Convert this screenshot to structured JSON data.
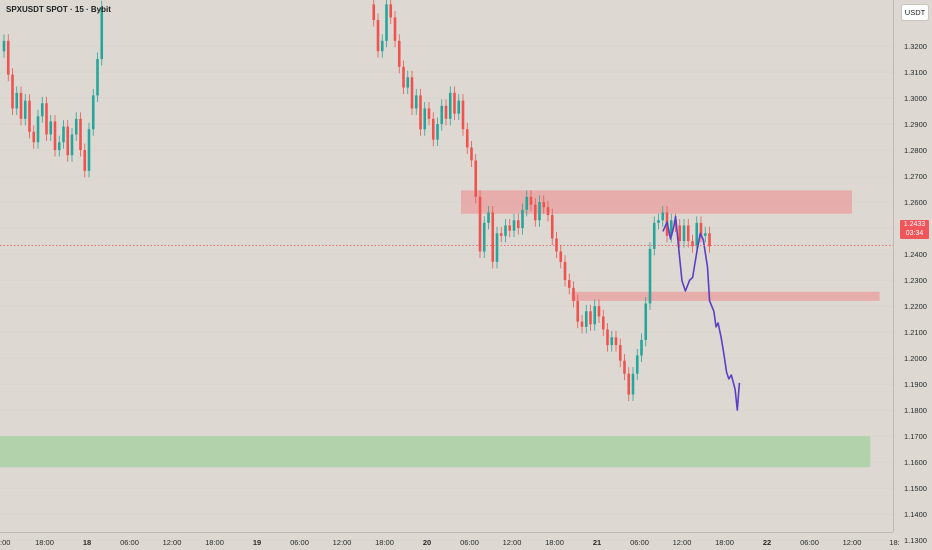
{
  "header": {
    "title": "SPXUSDT SPOT · 15 · Bybit",
    "currency_button": "USDT"
  },
  "price_tag": {
    "price": "1.2433",
    "countdown": "03:34"
  },
  "colors": {
    "background": "#ddd9d2",
    "up": "#26a69a",
    "down": "#ef5350",
    "resistance_zone": "#e8a4a4",
    "support_zone": "#a9d0a3",
    "projection": "#5b3fc6",
    "current_price_line": "#ef5350"
  },
  "chart_data": {
    "type": "candlestick",
    "ylim": [
      1.1262,
      1.3377
    ],
    "y_ticks": [
      "1.3200",
      "1.3100",
      "1.3000",
      "1.2900",
      "1.2800",
      "1.2700",
      "1.2600",
      "1.2500",
      "1.2400",
      "1.2300",
      "1.2200",
      "1.2100",
      "1.2000",
      "1.1900",
      "1.1800",
      "1.1700",
      "1.1600",
      "1.1500",
      "1.1400",
      "1.1300"
    ],
    "x_ticks": [
      {
        "t": 0,
        "label": ":00"
      },
      {
        "t": 10,
        "label": "18:00"
      },
      {
        "t": 20,
        "label": "18"
      },
      {
        "t": 30,
        "label": "06:00"
      },
      {
        "t": 40,
        "label": "12:00"
      },
      {
        "t": 50,
        "label": "18:00"
      },
      {
        "t": 60,
        "label": "19"
      },
      {
        "t": 70,
        "label": "06:00"
      },
      {
        "t": 80,
        "label": "12:00"
      },
      {
        "t": 90,
        "label": "18:00"
      },
      {
        "t": 100,
        "label": "20"
      },
      {
        "t": 110,
        "label": "06:00"
      },
      {
        "t": 120,
        "label": "12:00"
      },
      {
        "t": 130,
        "label": "18:00"
      },
      {
        "t": 140,
        "label": "21"
      },
      {
        "t": 150,
        "label": "06:00"
      },
      {
        "t": 160,
        "label": "12:00"
      },
      {
        "t": 170,
        "label": "18:00"
      },
      {
        "t": 180,
        "label": "22"
      },
      {
        "t": 190,
        "label": "06:00"
      },
      {
        "t": 200,
        "label": "12:00"
      },
      {
        "t": 210,
        "label": "18:"
      }
    ],
    "current_price": 1.2433,
    "zones": [
      {
        "name": "resistance-zone-upper",
        "t0": 108,
        "t1": 200,
        "y_top": 1.2645,
        "y_bottom": 1.2555,
        "color": "#e8a4a4"
      },
      {
        "name": "resistance-zone-lower",
        "t0": 134,
        "t1": 206.5,
        "y_top": 1.2255,
        "y_bottom": 1.222,
        "color": "#e8a4a4"
      },
      {
        "name": "support-zone",
        "t0": -0.5,
        "t1": 204.3,
        "y_top": 1.17,
        "y_bottom": 1.158,
        "color": "#a9d0a3"
      }
    ],
    "candle_segments": [
      {
        "t_start": 0,
        "points": [
          1.318,
          1.322,
          1.309,
          1.296,
          1.302,
          1.292,
          1.299,
          1.287,
          1.283,
          1.293,
          1.298,
          1.286,
          1.291,
          1.28,
          1.283,
          1.289,
          1.278,
          1.286,
          1.292,
          1.28,
          1.272,
          1.288,
          1.301,
          1.315,
          1.335
        ]
      },
      {
        "t_start": 87,
        "points": [
          1.336,
          1.33,
          1.318,
          1.322,
          1.336,
          1.331,
          1.322,
          1.312,
          1.304,
          1.308,
          1.296,
          1.301,
          1.288,
          1.296,
          1.292,
          1.284,
          1.29,
          1.297,
          1.292,
          1.302,
          1.294,
          1.299,
          1.288,
          1.281,
          1.276,
          1.262,
          1.241,
          1.252,
          1.256,
          1.237,
          1.248,
          1.247,
          1.251,
          1.249,
          1.253,
          1.25,
          1.257,
          1.262,
          1.259,
          1.253,
          1.26,
          1.258,
          1.255,
          1.246,
          1.241,
          1.237,
          1.23,
          1.227,
          1.222,
          1.214,
          1.212,
          1.218,
          1.213,
          1.22,
          1.216,
          1.211,
          1.205,
          1.208,
          1.205,
          1.199,
          1.194,
          1.186,
          1.194,
          1.201,
          1.207,
          1.221,
          1.242,
          1.252,
          1.253,
          1.256,
          1.247,
          1.253,
          1.251,
          1.245,
          1.251,
          1.245,
          1.243,
          1.252,
          1.247,
          1.248,
          1.243
        ]
      }
    ],
    "projection": [
      {
        "t": 155.5,
        "y": 1.2487
      },
      {
        "t": 156.5,
        "y": 1.2523
      },
      {
        "t": 157.3,
        "y": 1.2458
      },
      {
        "t": 158,
        "y": 1.25
      },
      {
        "t": 158.5,
        "y": 1.2545
      },
      {
        "t": 159.3,
        "y": 1.241
      },
      {
        "t": 160,
        "y": 1.2297
      },
      {
        "t": 160.8,
        "y": 1.2258
      },
      {
        "t": 161.8,
        "y": 1.23
      },
      {
        "t": 162.5,
        "y": 1.231
      },
      {
        "t": 163.5,
        "y": 1.241
      },
      {
        "t": 164.3,
        "y": 1.248
      },
      {
        "t": 165,
        "y": 1.2455
      },
      {
        "t": 166,
        "y": 1.235
      },
      {
        "t": 166.5,
        "y": 1.222
      },
      {
        "t": 167.5,
        "y": 1.218
      },
      {
        "t": 168,
        "y": 1.212
      },
      {
        "t": 168.5,
        "y": 1.2135
      },
      {
        "t": 169.2,
        "y": 1.208
      },
      {
        "t": 169.8,
        "y": 1.202
      },
      {
        "t": 170.5,
        "y": 1.1945
      },
      {
        "t": 171,
        "y": 1.192
      },
      {
        "t": 171.6,
        "y": 1.1935
      },
      {
        "t": 172.5,
        "y": 1.188
      },
      {
        "t": 173,
        "y": 1.18
      },
      {
        "t": 173.5,
        "y": 1.1905
      }
    ]
  }
}
